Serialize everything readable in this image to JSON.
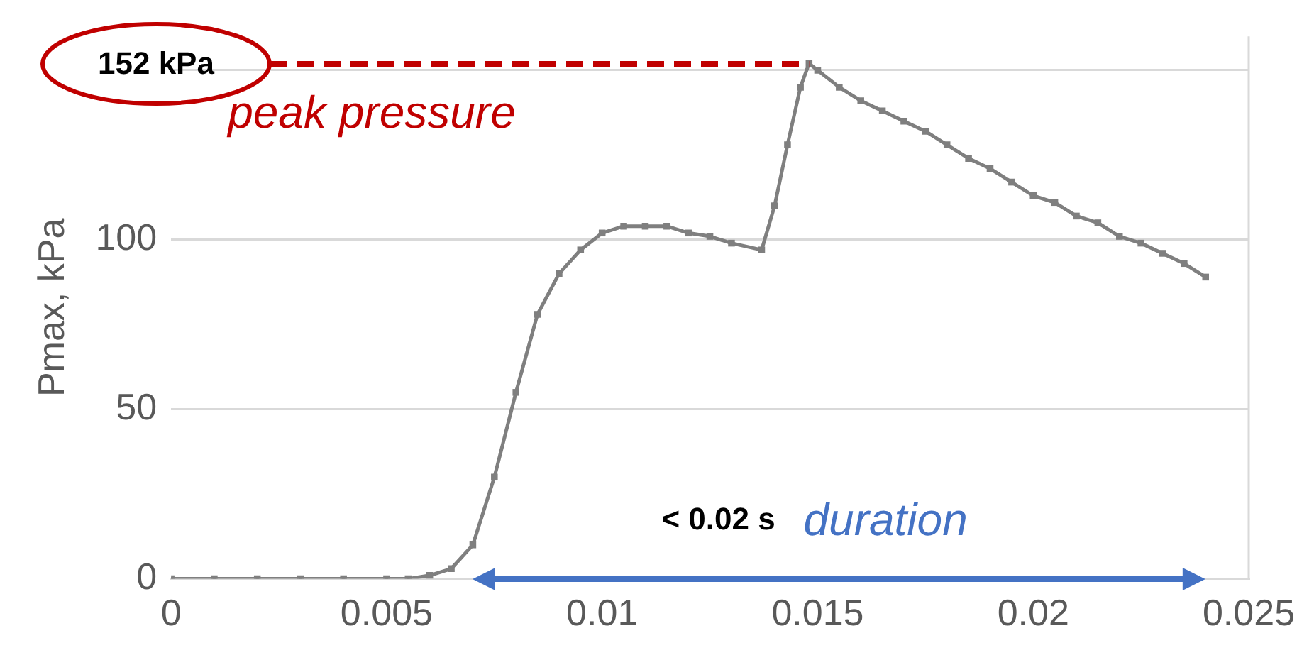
{
  "chart_data": {
    "type": "line",
    "ylabel": "Pmax, kPa",
    "x": [
      0,
      0.001,
      0.002,
      0.003,
      0.004,
      0.005,
      0.0055,
      0.006,
      0.0065,
      0.007,
      0.0075,
      0.008,
      0.0085,
      0.009,
      0.0095,
      0.01,
      0.0105,
      0.011,
      0.0115,
      0.012,
      0.0125,
      0.013,
      0.0137,
      0.014,
      0.0143,
      0.0146,
      0.0148,
      0.015,
      0.0155,
      0.016,
      0.0165,
      0.017,
      0.0175,
      0.018,
      0.0185,
      0.019,
      0.0195,
      0.02,
      0.0205,
      0.021,
      0.0215,
      0.022,
      0.0225,
      0.023,
      0.0235,
      0.024
    ],
    "series": [
      {
        "color": "#7f7f7f",
        "values": [
          0,
          0,
          0,
          0,
          0,
          0,
          0,
          1,
          3,
          10,
          30,
          55,
          78,
          90,
          97,
          102,
          104,
          104,
          104,
          102,
          101,
          99,
          97,
          110,
          128,
          145,
          152,
          150,
          145,
          141,
          138,
          135,
          132,
          128,
          124,
          121,
          117,
          113,
          111,
          107,
          105,
          101,
          99,
          96,
          93,
          89
        ]
      }
    ],
    "xlim": [
      0,
      0.025
    ],
    "xticks": [
      0,
      0.005,
      0.01,
      0.015,
      0.02,
      0.025
    ],
    "ylim": [
      0,
      160
    ],
    "yticks": [
      0,
      50,
      100,
      {
        "value": 150,
        "label": null
      }
    ],
    "grid": "y",
    "legend": false,
    "marker": "square",
    "line_style": "solid",
    "annotations": [
      "152 kPa",
      "peak pressure",
      "< 0.02 s",
      "duration"
    ]
  }
}
